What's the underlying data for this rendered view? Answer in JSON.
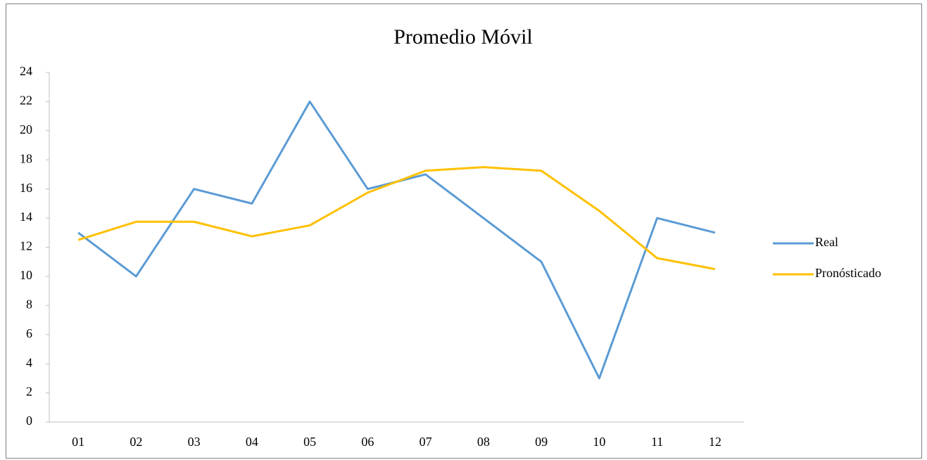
{
  "chart_data": {
    "type": "line",
    "title": "Promedio Móvil",
    "categories": [
      "01",
      "02",
      "03",
      "04",
      "05",
      "06",
      "07",
      "08",
      "09",
      "10",
      "11",
      "12"
    ],
    "series": [
      {
        "name": "Real",
        "color": "#5b9bd5",
        "values": [
          13,
          10,
          16,
          15,
          22,
          16,
          17,
          14,
          11,
          3,
          14,
          13
        ]
      },
      {
        "name": "Pronósticado",
        "color": "#ffc000",
        "values": [
          12.5,
          13.75,
          13.75,
          12.75,
          13.5,
          15.75,
          17.25,
          17.5,
          17.25,
          14.5,
          11.25,
          10.5
        ]
      }
    ],
    "ylim": [
      0,
      24
    ],
    "yticks": [
      0,
      2,
      4,
      6,
      8,
      10,
      12,
      14,
      16,
      18,
      20,
      22,
      24
    ],
    "grid": false,
    "legend": "right"
  }
}
